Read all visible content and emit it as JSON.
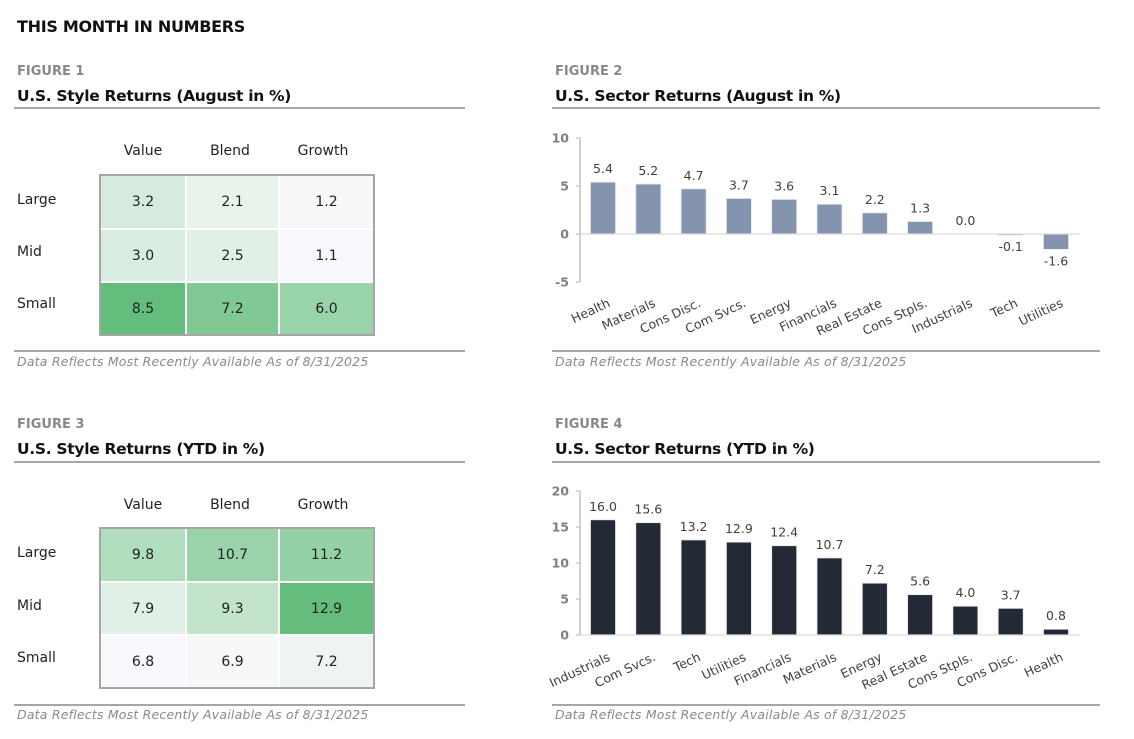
{
  "page": {
    "title": "THIS MONTH IN NUMBERS"
  },
  "figures": {
    "fig1": {
      "label": "FIGURE 1",
      "title": "U.S. Style Returns (August in %)",
      "footnote": "Data Reflects Most Recently Available As of 8/31/2025",
      "columns": [
        "Value",
        "Blend",
        "Growth"
      ],
      "rows": [
        "Large",
        "Mid",
        "Small"
      ],
      "values": [
        [
          "3.2",
          "2.1",
          "1.2"
        ],
        [
          "3.0",
          "2.5",
          "1.1"
        ],
        [
          "8.5",
          "7.2",
          "6.0"
        ]
      ],
      "colors": [
        [
          "#d4ebdd",
          "#e8f3ec",
          "#f7f8fa"
        ],
        [
          "#d9ede1",
          "#e0f0e6",
          "#f9f8fd"
        ],
        [
          "#63bd7c",
          "#80c994",
          "#99d3a9"
        ]
      ]
    },
    "fig2": {
      "label": "FIGURE 2",
      "title": "U.S. Sector Returns (August in %)",
      "footnote": "Data Reflects Most Recently Available As of 8/31/2025"
    },
    "fig3": {
      "label": "FIGURE 3",
      "title": "U.S. Style Returns (YTD in %)",
      "footnote": "Data Reflects Most Recently Available As of 8/31/2025",
      "columns": [
        "Value",
        "Blend",
        "Growth"
      ],
      "rows": [
        "Large",
        "Mid",
        "Small"
      ],
      "values": [
        [
          "9.8",
          "10.7",
          "11.2"
        ],
        [
          "7.9",
          "9.3",
          "12.9"
        ],
        [
          "6.8",
          "6.9",
          "7.2"
        ]
      ],
      "colors": [
        [
          "#b2dec0",
          "#9ad3aa",
          "#94d1a4"
        ],
        [
          "#e1f0e6",
          "#c1e4cb",
          "#64bd7c"
        ],
        [
          "#f9f8fd",
          "#f7f8fa",
          "#eef5f1"
        ]
      ]
    },
    "fig4": {
      "label": "FIGURE 4",
      "title": "U.S. Sector Returns (YTD in %)",
      "footnote": "Data Reflects Most Recently Available As of 8/31/2025"
    }
  },
  "chart_data": [
    {
      "type": "heatmap",
      "title": "U.S. Style Returns (August in %)",
      "x": [
        "Value",
        "Blend",
        "Growth"
      ],
      "y": [
        "Large",
        "Mid",
        "Small"
      ],
      "values": [
        [
          3.2,
          2.1,
          1.2
        ],
        [
          3.0,
          2.5,
          1.1
        ],
        [
          8.5,
          7.2,
          6.0
        ]
      ]
    },
    {
      "type": "bar",
      "title": "U.S. Sector Returns (August in %)",
      "categories": [
        "Health",
        "Materials",
        "Cons Disc.",
        "Com Svcs.",
        "Energy",
        "Financials",
        "Real Estate",
        "Cons Stpls.",
        "Industrials",
        "Tech",
        "Utilities"
      ],
      "values": [
        5.4,
        5.2,
        4.7,
        3.7,
        3.6,
        3.1,
        2.2,
        1.3,
        0.0,
        -0.1,
        -1.6
      ],
      "labels": [
        "5.4",
        "5.2",
        "4.7",
        "3.7",
        "3.6",
        "3.1",
        "2.2",
        "1.3",
        "0.0",
        "-0.1",
        "-1.6"
      ],
      "ylim": [
        -5,
        10
      ],
      "yticks": [
        10,
        5,
        0,
        -5
      ],
      "xlabel": "",
      "ylabel": "",
      "color": "#8494ae",
      "grid": false
    },
    {
      "type": "heatmap",
      "title": "U.S. Style Returns (YTD in %)",
      "x": [
        "Value",
        "Blend",
        "Growth"
      ],
      "y": [
        "Large",
        "Mid",
        "Small"
      ],
      "values": [
        [
          9.8,
          10.7,
          11.2
        ],
        [
          7.9,
          9.3,
          12.9
        ],
        [
          6.8,
          6.9,
          7.2
        ]
      ]
    },
    {
      "type": "bar",
      "title": "U.S. Sector Returns (YTD in %)",
      "categories": [
        "Industrials",
        "Com Svcs.",
        "Tech",
        "Utilities",
        "Financials",
        "Materials",
        "Energy",
        "Real Estate",
        "Cons Stpls.",
        "Cons Disc.",
        "Health"
      ],
      "values": [
        16.0,
        15.6,
        13.2,
        12.9,
        12.4,
        10.7,
        7.2,
        5.6,
        4.0,
        3.7,
        0.8
      ],
      "labels": [
        "16.0",
        "15.6",
        "13.2",
        "12.9",
        "12.4",
        "10.7",
        "7.2",
        "5.6",
        "4.0",
        "3.7",
        "0.8"
      ],
      "ylim": [
        0,
        20
      ],
      "yticks": [
        20,
        15,
        10,
        5,
        0
      ],
      "xlabel": "",
      "ylabel": "",
      "color": "#232a36",
      "grid": false
    }
  ]
}
